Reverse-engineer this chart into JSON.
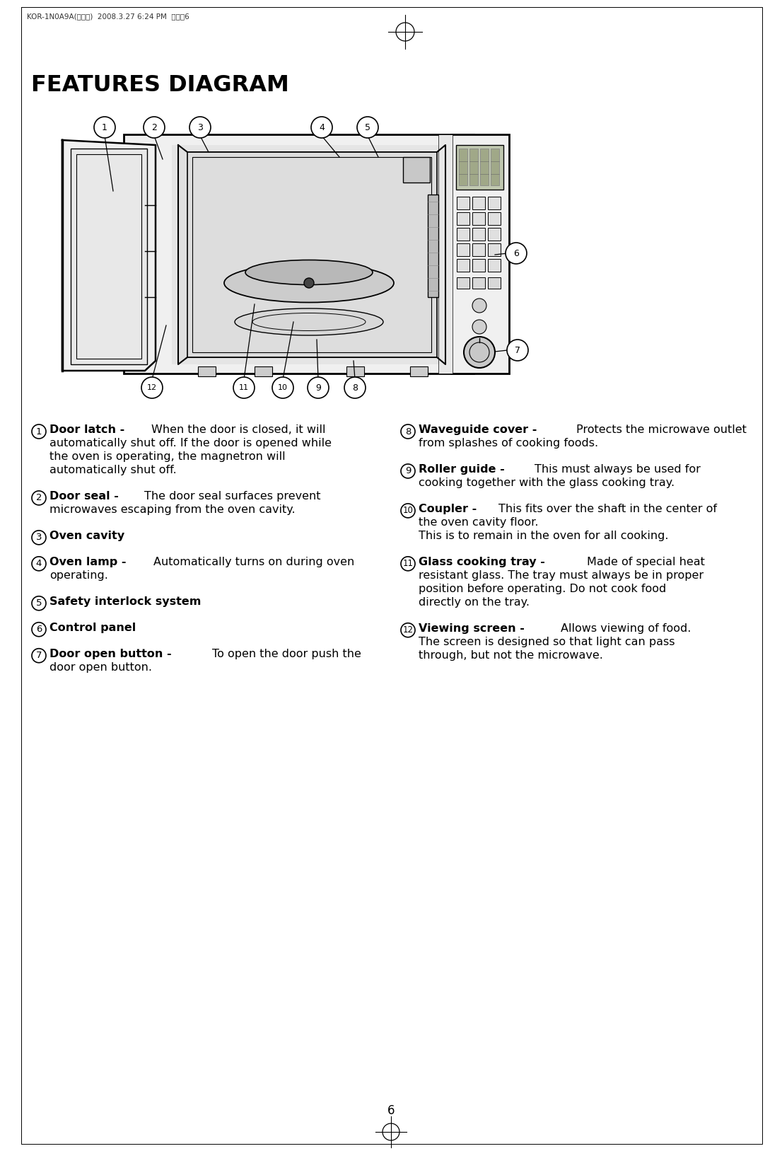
{
  "title": "FEATURES DIAGRAM",
  "header_text": "KOR-1N0A9A(영기본)  2008.3.27 6:24 PM  페이지6",
  "page_number": "6",
  "bg_color": "#ffffff",
  "text_color": "#000000",
  "left_data": [
    {
      "num": "1",
      "bold": "Door latch - ",
      "normal": "When the door is closed, it will\n    automatically shut off. If the door is opened while\n    the oven is operating, the magnetron will\n    automatically shut off."
    },
    {
      "num": "2",
      "bold": "Door seal - ",
      "normal": "The door seal surfaces prevent\n    microwaves escaping from the oven cavity."
    },
    {
      "num": "3",
      "bold": "Oven cavity",
      "normal": ""
    },
    {
      "num": "4",
      "bold": "Oven lamp - ",
      "normal": "Automatically turns on during oven\n    operating."
    },
    {
      "num": "5",
      "bold": "Safety interlock system",
      "normal": ""
    },
    {
      "num": "6",
      "bold": "Control panel",
      "normal": ""
    },
    {
      "num": "7",
      "bold": "Door open button - ",
      "normal": "To open the door push the\n    door open button."
    }
  ],
  "right_data": [
    {
      "num": "8",
      "bold": "Waveguide cover - ",
      "normal": "Protects the microwave outlet\n    from splashes of cooking foods."
    },
    {
      "num": "9",
      "bold": "Roller guide - ",
      "normal": "This must always be used for\n    cooking together with the glass cooking tray."
    },
    {
      "num": "10",
      "bold": "Coupler - ",
      "normal": "This fits over the shaft in the center of\n    the oven cavity floor.\n    This is to remain in the oven for all cooking."
    },
    {
      "num": "11",
      "bold": "Glass cooking tray - ",
      "normal": "Made of special heat\n    resistant glass. The tray must always be in proper\n    position before operating. Do not cook food\n    directly on the tray."
    },
    {
      "num": "12",
      "bold": "Viewing screen - ",
      "normal": "Allows viewing of food.\n    The screen is designed so that light can pass\n    through, but not the microwave."
    }
  ]
}
